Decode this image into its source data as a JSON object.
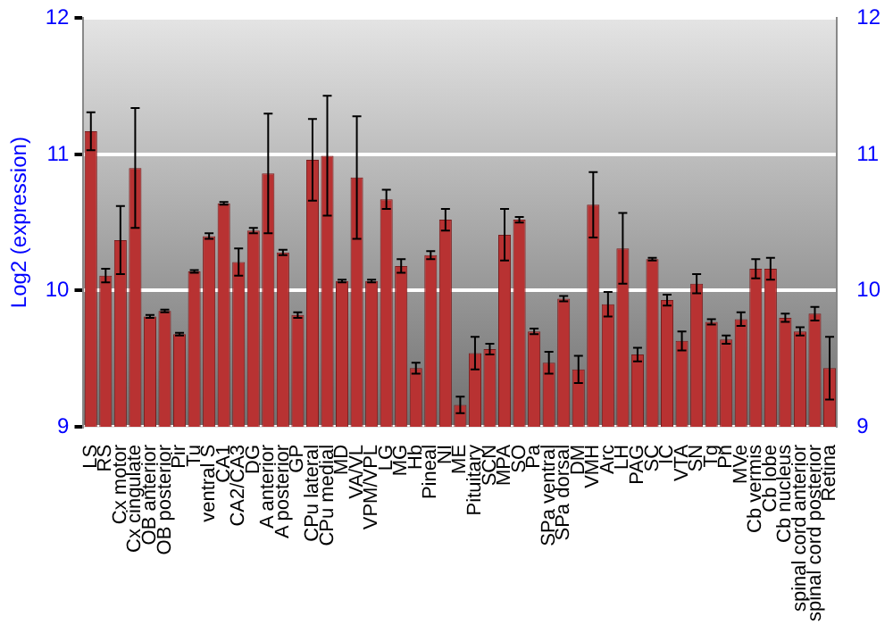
{
  "chart_data": {
    "type": "bar",
    "ylabel": "Log2 (expression)",
    "categories": [
      "LS",
      "RS",
      "Cx motor",
      "Cx cingulate",
      "OB anterior",
      "OB posterior",
      "Pir",
      "Tu",
      "ventral S",
      "CA1",
      "CA2/CA3",
      "DG",
      "A anterior",
      "A posterior",
      "GP",
      "CPu lateral",
      "CPu medial",
      "MD",
      "VA/VL",
      "VPM/VPL",
      "LG",
      "MG",
      "Hb",
      "Pineal",
      "NI",
      "ME",
      "Pituitary",
      "SCN",
      "MPA",
      "SO",
      "Pa",
      "SPa ventral",
      "SPa dorsal",
      "DM",
      "VMH",
      "Arc",
      "LH",
      "PAG",
      "SC",
      "IC",
      "VTA",
      "SN",
      "Tg",
      "Pn",
      "MVe",
      "Cb vermis",
      "Cb lobe",
      "Cb nucleus",
      "spinal cord anterior",
      "spinal cord posterior",
      "Retina"
    ],
    "values": [
      11.17,
      10.11,
      10.37,
      10.9,
      9.81,
      9.85,
      9.68,
      10.14,
      10.4,
      10.64,
      10.21,
      10.44,
      10.86,
      10.28,
      9.82,
      10.96,
      10.99,
      10.07,
      10.83,
      10.07,
      10.67,
      10.18,
      9.43,
      10.26,
      10.52,
      9.16,
      9.54,
      9.57,
      10.41,
      10.52,
      9.7,
      9.47,
      9.94,
      9.42,
      10.63,
      9.9,
      10.31,
      9.53,
      10.23,
      9.93,
      9.63,
      10.05,
      9.77,
      9.64,
      9.79,
      10.16,
      10.16,
      9.8,
      9.7,
      9.83,
      9.43
    ],
    "errors": [
      0.14,
      0.05,
      0.25,
      0.44,
      0.01,
      0.01,
      0.01,
      0.01,
      0.02,
      0.01,
      0.1,
      0.02,
      0.44,
      0.02,
      0.02,
      0.3,
      0.44,
      0.01,
      0.45,
      0.01,
      0.07,
      0.05,
      0.04,
      0.03,
      0.08,
      0.06,
      0.12,
      0.04,
      0.19,
      0.02,
      0.02,
      0.08,
      0.02,
      0.1,
      0.24,
      0.09,
      0.26,
      0.05,
      0.01,
      0.04,
      0.07,
      0.07,
      0.02,
      0.03,
      0.05,
      0.07,
      0.08,
      0.03,
      0.03,
      0.05,
      0.23
    ],
    "color": "#b83232",
    "ylim": [
      9,
      12
    ],
    "yticks": [
      9,
      10,
      11,
      12
    ],
    "y2lim": [
      9,
      12
    ],
    "y2ticks": [
      9,
      10,
      11,
      12
    ],
    "grid": "y",
    "legend": false
  }
}
